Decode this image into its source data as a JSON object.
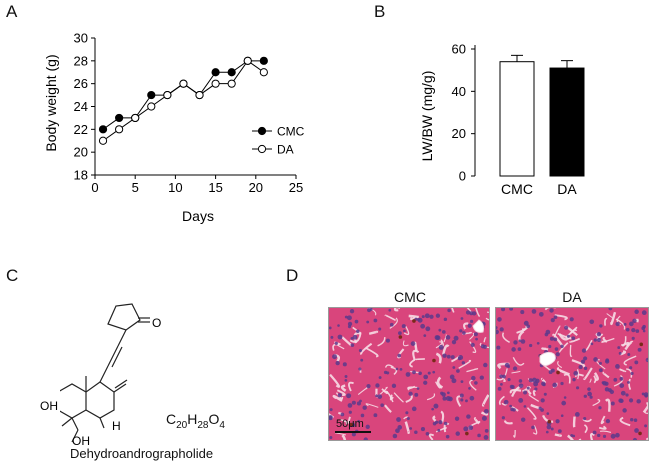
{
  "panels": {
    "a": "A",
    "b": "B",
    "c": "C",
    "d": "D"
  },
  "chart_data": [
    {
      "type": "line",
      "xlabel": "Days",
      "ylabel": "Body weight  (g)",
      "xlim": [
        0,
        25
      ],
      "ylim": [
        18,
        30
      ],
      "xticks": [
        "0",
        "5",
        "10",
        "15",
        "20",
        "25"
      ],
      "yticks": [
        "18",
        "20",
        "22",
        "24",
        "26",
        "28",
        "30"
      ],
      "grid": false,
      "legend": "right",
      "series": [
        {
          "name": "CMC",
          "marker": "filled",
          "x": [
            1,
            3,
            5,
            7,
            9,
            11,
            13,
            15,
            17,
            19,
            21
          ],
          "y": [
            22,
            23,
            23,
            25,
            25,
            26,
            25,
            27,
            27,
            28,
            28
          ]
        },
        {
          "name": "DA",
          "marker": "open",
          "x": [
            1,
            3,
            5,
            7,
            9,
            11,
            13,
            15,
            17,
            19,
            21
          ],
          "y": [
            21,
            22,
            23,
            24,
            25,
            26,
            25,
            26,
            26,
            28,
            27
          ]
        }
      ]
    },
    {
      "type": "bar",
      "ylabel": "LW/BW (mg/g)",
      "ylim": [
        0,
        60
      ],
      "yticks": [
        "0",
        "20",
        "40",
        "60"
      ],
      "categories": [
        "CMC",
        "DA"
      ],
      "values": [
        54,
        51
      ],
      "errors": [
        3,
        3.5
      ],
      "colors": [
        "#ffffff",
        "#000000"
      ]
    }
  ],
  "chemistry": {
    "name": "Dehydroandrographolide",
    "formula_c": "C",
    "formula_c_n": "20",
    "formula_h": "H",
    "formula_h_n": "28",
    "formula_o": "O",
    "formula_o_n": "4",
    "atom_o": "O",
    "atom_oh1": "OH",
    "atom_oh2": "OH",
    "atom_h": "H"
  },
  "micrographs": {
    "cmc_title": "CMC",
    "da_title": "DA",
    "scalebar": "50μm"
  }
}
